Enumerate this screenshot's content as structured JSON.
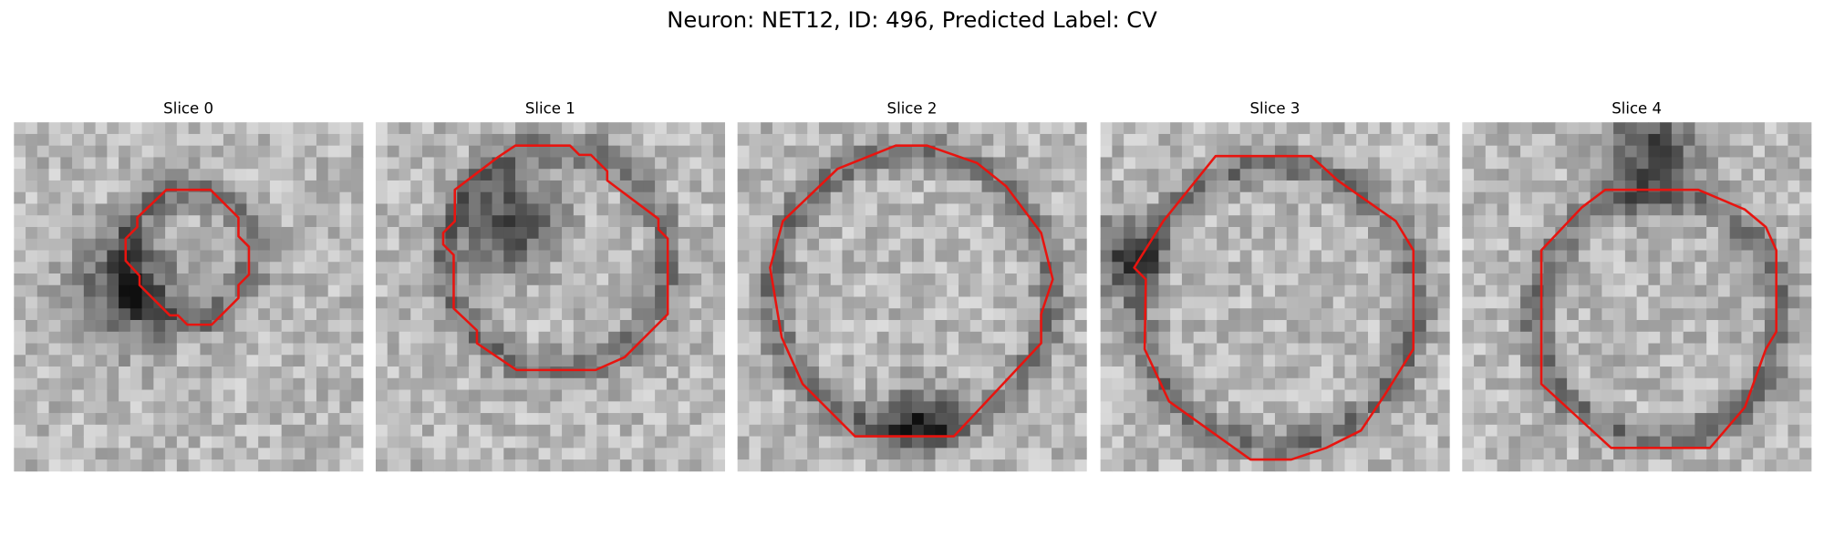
{
  "title": "Neuron: NET12, ID: 496, Predicted Label: CV",
  "panels": [
    {
      "title": "Slice 0"
    },
    {
      "title": "Slice 1"
    },
    {
      "title": "Slice 2"
    },
    {
      "title": "Slice 3"
    },
    {
      "title": "Slice 4"
    }
  ]
}
